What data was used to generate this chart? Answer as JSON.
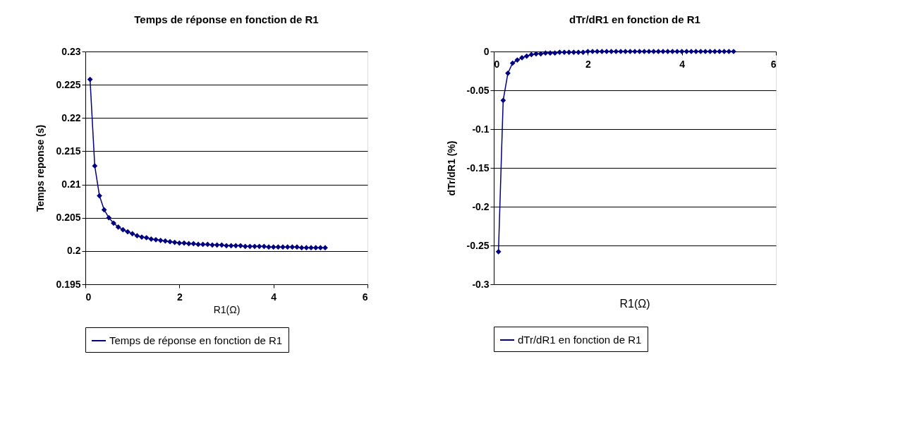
{
  "chart_data": [
    {
      "type": "line",
      "title": "Temps de réponse en fonction de R1",
      "xlabel": "R1(Ω)",
      "ylabel": "Temps reponse (s)",
      "x": [
        0.1,
        0.2,
        0.3,
        0.4,
        0.5,
        0.6,
        0.7,
        0.8,
        0.9,
        1.0,
        1.1,
        1.2,
        1.3,
        1.4,
        1.5,
        1.6,
        1.7,
        1.8,
        1.9,
        2.0,
        2.1,
        2.2,
        2.3,
        2.4,
        2.5,
        2.6,
        2.7,
        2.8,
        2.9,
        3.0,
        3.1,
        3.2,
        3.3,
        3.4,
        3.5,
        3.6,
        3.7,
        3.8,
        3.9,
        4.0,
        4.1,
        4.2,
        4.3,
        4.4,
        4.5,
        4.6,
        4.7,
        4.8,
        4.9,
        5.0,
        5.1
      ],
      "series": [
        {
          "name": "Temps de réponse en fonction de R1",
          "color": "#000080",
          "values": [
            0.2258,
            0.2128,
            0.2083,
            0.2062,
            0.205,
            0.2042,
            0.2036,
            0.2032,
            0.2029,
            0.2026,
            0.2023,
            0.2021,
            0.202,
            0.2018,
            0.2017,
            0.2016,
            0.2015,
            0.2014,
            0.2013,
            0.2012,
            0.2012,
            0.2011,
            0.2011,
            0.201,
            0.201,
            0.201,
            0.2009,
            0.2009,
            0.2009,
            0.2008,
            0.2008,
            0.2008,
            0.2008,
            0.2007,
            0.2007,
            0.2007,
            0.2007,
            0.2007,
            0.2006,
            0.2006,
            0.2006,
            0.2006,
            0.2006,
            0.2006,
            0.2006,
            0.2005,
            0.2005,
            0.2005,
            0.2005,
            0.2005,
            0.2005
          ]
        }
      ],
      "xlim": [
        0,
        6
      ],
      "xticks": [
        0,
        2,
        4,
        6
      ],
      "ylim": [
        0.195,
        0.23
      ],
      "yticks": [
        0.195,
        0.2,
        0.205,
        0.21,
        0.215,
        0.22,
        0.225,
        0.23
      ],
      "grid": "y",
      "legend": "bottom",
      "marker": "diamond",
      "line_style": "solid"
    },
    {
      "type": "line",
      "title": "dTr/dR1 en fonction de R1",
      "xlabel": "R1(Ω)",
      "ylabel": "dTr/dR1    (%)",
      "x": [
        0.1,
        0.2,
        0.3,
        0.4,
        0.5,
        0.6,
        0.7,
        0.8,
        0.9,
        1.0,
        1.1,
        1.2,
        1.3,
        1.4,
        1.5,
        1.6,
        1.7,
        1.8,
        1.9,
        2.0,
        2.1,
        2.2,
        2.3,
        2.4,
        2.5,
        2.6,
        2.7,
        2.8,
        2.9,
        3.0,
        3.1,
        3.2,
        3.3,
        3.4,
        3.5,
        3.6,
        3.7,
        3.8,
        3.9,
        4.0,
        4.1,
        4.2,
        4.3,
        4.4,
        4.5,
        4.6,
        4.7,
        4.8,
        4.9,
        5.0,
        5.1
      ],
      "series": [
        {
          "name": "dTr/dR1 en fonction de R1",
          "color": "#000080",
          "values": [
            -0.258,
            -0.063,
            -0.028,
            -0.015,
            -0.011,
            -0.008,
            -0.006,
            -0.004,
            -0.003,
            -0.003,
            -0.002,
            -0.002,
            -0.002,
            -0.001,
            -0.001,
            -0.001,
            -0.001,
            -0.001,
            -0.001,
            0,
            0,
            0,
            0,
            0,
            0,
            0,
            0,
            0,
            0,
            0,
            0,
            0,
            0,
            0,
            0,
            0,
            0,
            0,
            0,
            0,
            0,
            0,
            0,
            0,
            0,
            0,
            0,
            0,
            0,
            0,
            0
          ]
        }
      ],
      "xlim": [
        0,
        6
      ],
      "xticks": [
        0,
        2,
        4,
        6
      ],
      "ylim": [
        -0.3,
        0
      ],
      "yticks": [
        -0.3,
        -0.25,
        -0.2,
        -0.15,
        -0.1,
        -0.05,
        0
      ],
      "grid": "y",
      "legend": "bottom",
      "marker": "diamond",
      "line_style": "solid"
    }
  ]
}
